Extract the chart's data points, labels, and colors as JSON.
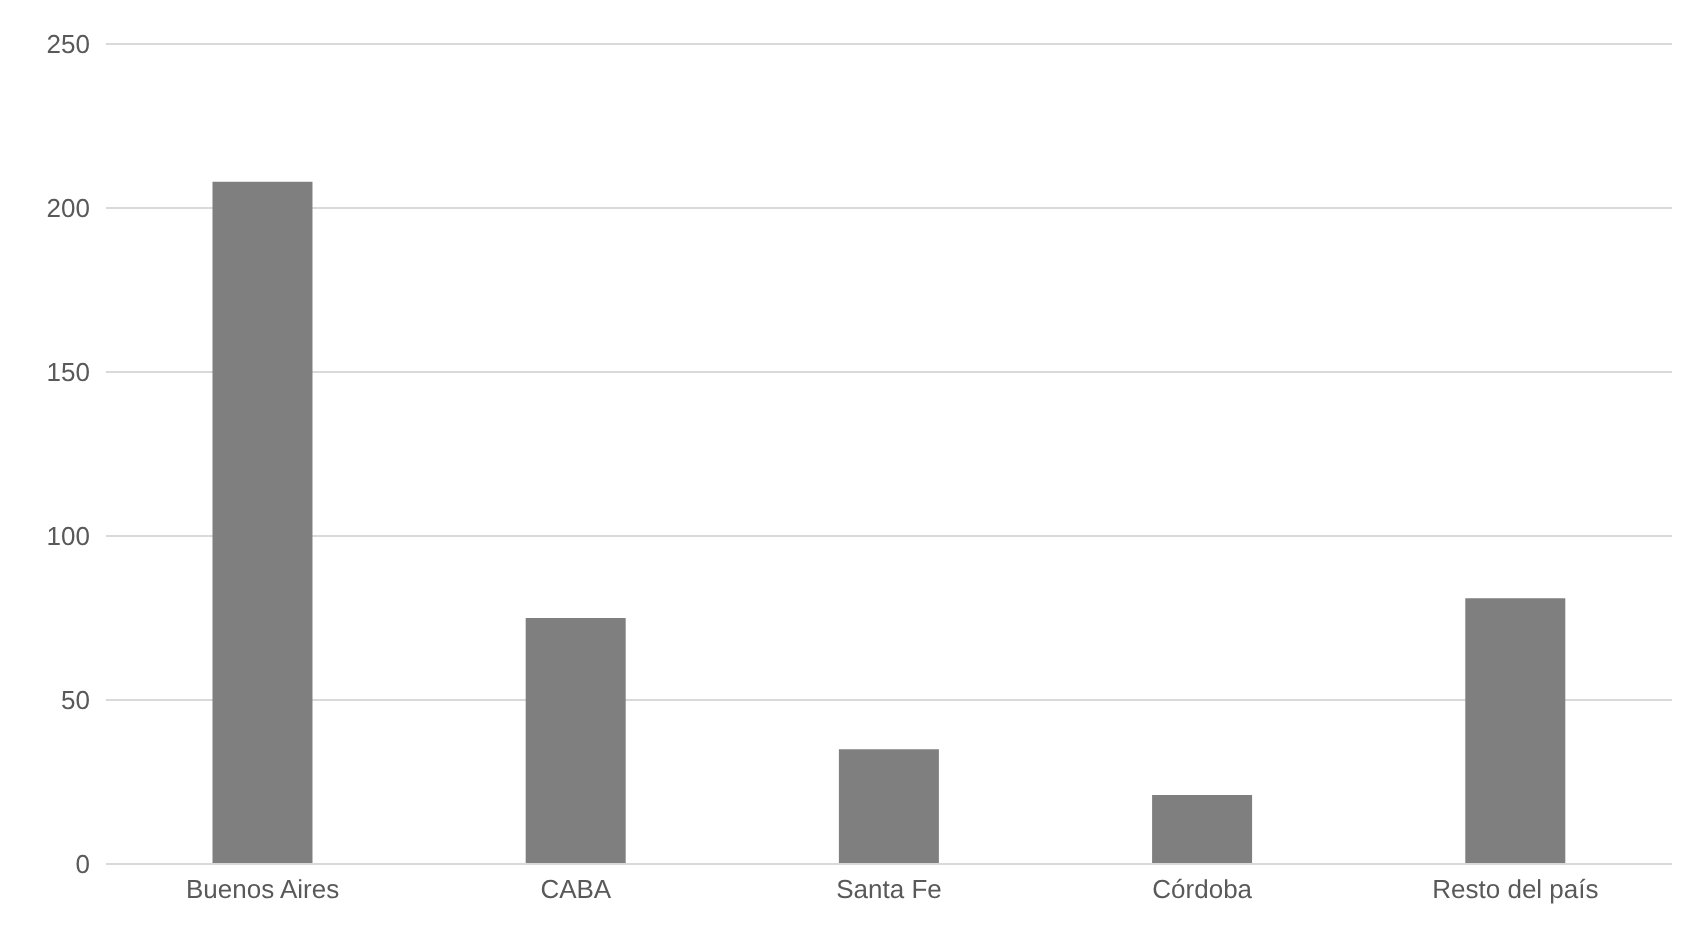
{
  "chart_data": {
    "type": "bar",
    "categories": [
      "Buenos Aires",
      "CABA",
      "Santa Fe",
      "Córdoba",
      "Resto del país"
    ],
    "values": [
      208,
      75,
      35,
      21,
      81
    ],
    "color": "#7f7f7f",
    "ylim": [
      0,
      250
    ],
    "yticks": [
      0,
      50,
      100,
      150,
      200,
      250
    ],
    "grid": "y"
  }
}
